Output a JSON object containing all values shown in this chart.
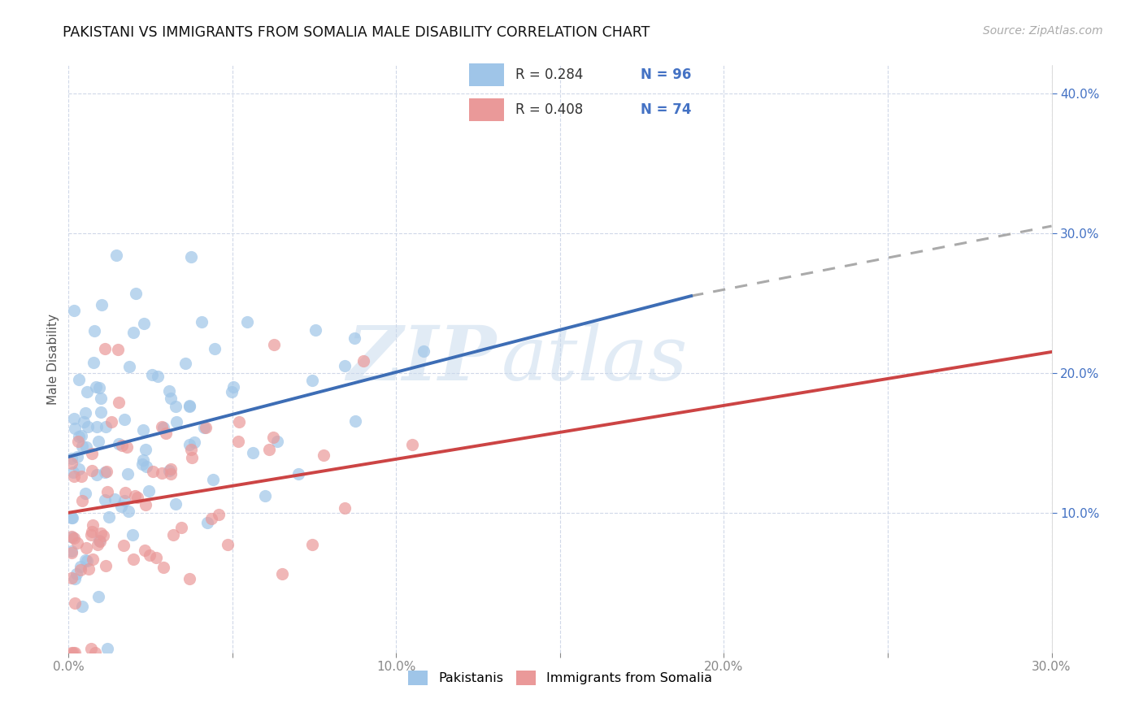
{
  "title": "PAKISTANI VS IMMIGRANTS FROM SOMALIA MALE DISABILITY CORRELATION CHART",
  "source": "Source: ZipAtlas.com",
  "ylabel": "Male Disability",
  "xlim": [
    0.0,
    0.3
  ],
  "ylim": [
    0.0,
    0.42
  ],
  "xtick_vals": [
    0.0,
    0.05,
    0.1,
    0.15,
    0.2,
    0.25,
    0.3
  ],
  "xtick_labels": [
    "0.0%",
    "",
    "10.0%",
    "",
    "20.0%",
    "",
    "30.0%"
  ],
  "ytick_vals": [
    0.1,
    0.2,
    0.3,
    0.4
  ],
  "ytick_labels": [
    "10.0%",
    "20.0%",
    "30.0%",
    "40.0%"
  ],
  "color_blue": "#9fc5e8",
  "color_pink": "#ea9999",
  "color_blue_line": "#3d6db5",
  "color_pink_line": "#cc4444",
  "color_dashed": "#aaaaaa",
  "watermark_zip": "ZIP",
  "watermark_atlas": "atlas",
  "blue_line_x0": 0.0,
  "blue_line_y0": 0.14,
  "blue_line_x1": 0.19,
  "blue_line_y1": 0.255,
  "dash_line_x0": 0.19,
  "dash_line_y0": 0.255,
  "dash_line_x1": 0.3,
  "dash_line_y1": 0.305,
  "pink_line_x0": 0.0,
  "pink_line_y0": 0.1,
  "pink_line_x1": 0.3,
  "pink_line_y1": 0.215,
  "legend_r1_val": "R = 0.284",
  "legend_n1_val": "N = 96",
  "legend_r2_val": "R = 0.408",
  "legend_n2_val": "N = 74",
  "label_pakistanis": "Pakistanis",
  "label_somalia": "Immigrants from Somalia"
}
